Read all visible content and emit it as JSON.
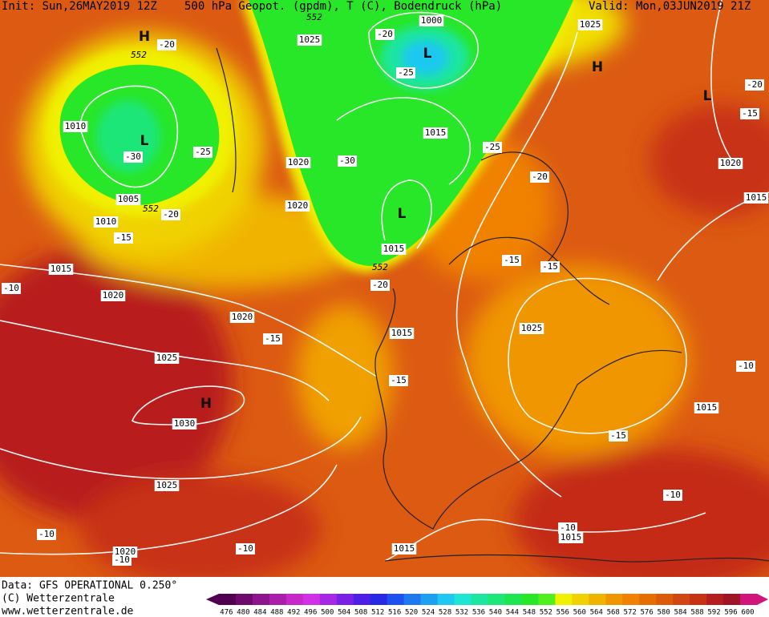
{
  "header": {
    "init": "Init: Sun,26MAY2019 12Z",
    "title": "500 hPa Geopot. (gpdm), T (C), Bodendruck (hPa)",
    "valid": "Valid: Mon,03JUN2019 21Z"
  },
  "footer": {
    "data_source": "Data: GFS OPERATIONAL 0.250°",
    "copyright": "(C) Wetterzentrale",
    "url": "www.wetterzentrale.de"
  },
  "isobar_labels": [
    1025,
    1000,
    1015,
    1020,
    1020,
    1015,
    1010,
    1005,
    1010,
    1015,
    1020,
    1020,
    1025,
    1030,
    1025,
    1020,
    1015,
    1015,
    1015,
    1025,
    1015,
    1025,
    1020,
    1015
  ],
  "temperature_labels": [
    -20,
    -20,
    -25,
    -30,
    -25,
    -30,
    -25,
    -20,
    -20,
    -15,
    -10,
    -15,
    -15,
    -20,
    -15,
    -15,
    -15,
    -10,
    -10,
    -10,
    -10,
    -10,
    -10,
    -20,
    -15
  ],
  "height_labels": [
    552,
    552,
    552,
    552
  ],
  "pressure_centers": [
    "H",
    "H",
    "H",
    "L",
    "L",
    "L",
    "L"
  ],
  "colorbar": {
    "labels": [
      476,
      480,
      484,
      488,
      492,
      496,
      500,
      504,
      508,
      512,
      516,
      520,
      524,
      528,
      532,
      536,
      540,
      544,
      548,
      552,
      556,
      560,
      564,
      568,
      572,
      576,
      580,
      584,
      588,
      592,
      596,
      600
    ],
    "colors": [
      "#50004f",
      "#6e0a6e",
      "#8c148c",
      "#aa1eaa",
      "#c828c8",
      "#d230e6",
      "#a628e6",
      "#7a20e6",
      "#4c1ee6",
      "#2828e6",
      "#1e50f0",
      "#1e78f0",
      "#1ea0f0",
      "#1ec8f0",
      "#1ee6d2",
      "#1ee6a0",
      "#1ee678",
      "#1ee650",
      "#28e628",
      "#50f01e",
      "#f0f000",
      "#f0d200",
      "#f0b400",
      "#f09600",
      "#f08200",
      "#e66e00",
      "#dc5a0a",
      "#d24614",
      "#c83214",
      "#b41e1e",
      "#a01428",
      "#d2147a"
    ]
  }
}
